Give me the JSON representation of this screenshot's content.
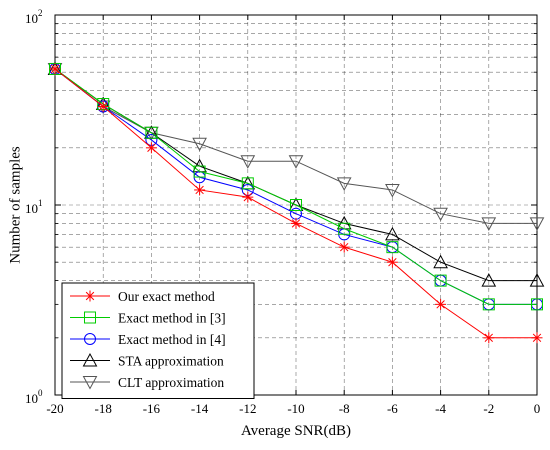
{
  "chart_data": {
    "type": "line",
    "xlabel": "Average SNR(dB)",
    "ylabel": "Number of samples",
    "xlim": [
      -20,
      0
    ],
    "ylim": [
      1,
      100
    ],
    "yscale": "log",
    "grid": true,
    "legend_position": "bottom-left",
    "x_ticks": [
      "-20",
      "-18",
      "-16",
      "-14",
      "-12",
      "-10",
      "-8",
      "-6",
      "-4",
      "-2",
      "0"
    ],
    "y_ticks": [
      {
        "base": "10",
        "exp": "0"
      },
      {
        "base": "10",
        "exp": "1"
      },
      {
        "base": "10",
        "exp": "2"
      }
    ],
    "x": [
      -20,
      -18,
      -16,
      -14,
      -12,
      -10,
      -8,
      -6,
      -4,
      -2,
      0
    ],
    "series": [
      {
        "name": "Our exact method",
        "color": "#ff0000",
        "marker": "star",
        "values": [
          52,
          33,
          20,
          12,
          11,
          8,
          6,
          5,
          3,
          2,
          2
        ]
      },
      {
        "name": "Exact method in [3]",
        "color": "#00cc00",
        "marker": "square",
        "values": [
          52,
          34,
          24,
          15,
          13,
          10,
          7.5,
          6,
          4,
          3,
          3
        ]
      },
      {
        "name": "Exact method in [4]",
        "color": "#0000ff",
        "marker": "circle",
        "values": [
          52,
          33,
          22,
          14,
          12,
          9,
          7,
          6,
          4,
          3,
          3
        ]
      },
      {
        "name": "STA approximation",
        "color": "#000000",
        "marker": "triangle-up",
        "values": [
          52,
          34,
          24,
          16,
          13,
          10,
          8,
          7,
          5,
          4,
          4
        ]
      },
      {
        "name": "CLT approximation",
        "color": "#555555",
        "marker": "triangle-down",
        "values": [
          52,
          33,
          24,
          21,
          17,
          17,
          13,
          12,
          9,
          8,
          8
        ]
      }
    ]
  }
}
